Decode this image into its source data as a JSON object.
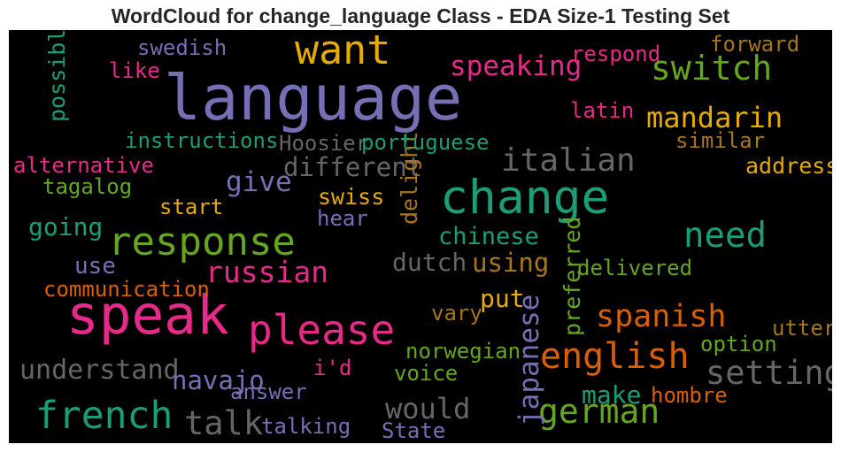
{
  "chart_data": {
    "type": "wordcloud",
    "title": "WordCloud for change_language Class - EDA Size-1 Testing Set",
    "background": "#000000",
    "palette": [
      "#7570b3",
      "#1b9e77",
      "#d95f02",
      "#e7298a",
      "#66a61e",
      "#e6ab02",
      "#a6761d",
      "#666666"
    ],
    "words": [
      {
        "text": "language",
        "weight": 1.0,
        "color": "#7570b3",
        "orientation": "horizontal"
      },
      {
        "text": "speak",
        "weight": 0.85,
        "color": "#e7298a",
        "orientation": "horizontal"
      },
      {
        "text": "change",
        "weight": 0.72,
        "color": "#1b9e77",
        "orientation": "horizontal"
      },
      {
        "text": "please",
        "weight": 0.6,
        "color": "#e7298a",
        "orientation": "horizontal"
      },
      {
        "text": "want",
        "weight": 0.58,
        "color": "#e6ab02",
        "orientation": "horizontal"
      },
      {
        "text": "response",
        "weight": 0.56,
        "color": "#66a61e",
        "orientation": "horizontal"
      },
      {
        "text": "french",
        "weight": 0.53,
        "color": "#1b9e77",
        "orientation": "horizontal"
      },
      {
        "text": "english",
        "weight": 0.49,
        "color": "#d95f02",
        "orientation": "horizontal"
      },
      {
        "text": "need",
        "weight": 0.47,
        "color": "#1b9e77",
        "orientation": "horizontal"
      },
      {
        "text": "switch",
        "weight": 0.45,
        "color": "#66a61e",
        "orientation": "horizontal"
      },
      {
        "text": "german",
        "weight": 0.45,
        "color": "#66a61e",
        "orientation": "horizontal"
      },
      {
        "text": "setting",
        "weight": 0.43,
        "color": "#666666",
        "orientation": "horizontal"
      },
      {
        "text": "talk",
        "weight": 0.42,
        "color": "#666666",
        "orientation": "horizontal"
      },
      {
        "text": "italian",
        "weight": 0.41,
        "color": "#666666",
        "orientation": "horizontal"
      },
      {
        "text": "spanish",
        "weight": 0.39,
        "color": "#d95f02",
        "orientation": "horizontal"
      },
      {
        "text": "russian",
        "weight": 0.35,
        "color": "#e7298a",
        "orientation": "horizontal"
      },
      {
        "text": "mandarin",
        "weight": 0.34,
        "color": "#e6ab02",
        "orientation": "horizontal"
      },
      {
        "text": "would",
        "weight": 0.34,
        "color": "#666666",
        "orientation": "horizontal"
      },
      {
        "text": "speaking",
        "weight": 0.32,
        "color": "#e7298a",
        "orientation": "horizontal"
      },
      {
        "text": "give",
        "weight": 0.32,
        "color": "#7570b3",
        "orientation": "horizontal"
      },
      {
        "text": "japanese",
        "weight": 0.31,
        "color": "#7570b3",
        "orientation": "vertical"
      },
      {
        "text": "understand",
        "weight": 0.29,
        "color": "#666666",
        "orientation": "horizontal"
      },
      {
        "text": "different",
        "weight": 0.28,
        "color": "#666666",
        "orientation": "horizontal"
      },
      {
        "text": "using",
        "weight": 0.28,
        "color": "#a6761d",
        "orientation": "horizontal"
      },
      {
        "text": "navajo",
        "weight": 0.27,
        "color": "#7570b3",
        "orientation": "horizontal"
      },
      {
        "text": "make",
        "weight": 0.26,
        "color": "#1b9e77",
        "orientation": "horizontal"
      },
      {
        "text": "dutch",
        "weight": 0.25,
        "color": "#666666",
        "orientation": "horizontal"
      },
      {
        "text": "going",
        "weight": 0.25,
        "color": "#1b9e77",
        "orientation": "horizontal"
      },
      {
        "text": "put",
        "weight": 0.25,
        "color": "#e6ab02",
        "orientation": "horizontal"
      },
      {
        "text": "chinese",
        "weight": 0.23,
        "color": "#1b9e77",
        "orientation": "horizontal"
      },
      {
        "text": "use",
        "weight": 0.22,
        "color": "#7570b3",
        "orientation": "horizontal"
      },
      {
        "text": "preferred",
        "weight": 0.2,
        "color": "#66a61e",
        "orientation": "vertical"
      },
      {
        "text": "delight",
        "weight": 0.19,
        "color": "#a6761d",
        "orientation": "vertical"
      },
      {
        "text": "possible",
        "weight": 0.19,
        "color": "#1b9e77",
        "orientation": "vertical"
      },
      {
        "text": "swiss",
        "weight": 0.19,
        "color": "#e6ab02",
        "orientation": "horizontal"
      },
      {
        "text": "address",
        "weight": 0.19,
        "color": "#e6ab02",
        "orientation": "horizontal"
      },
      {
        "text": "instructions",
        "weight": 0.18,
        "color": "#1b9e77",
        "orientation": "horizontal"
      },
      {
        "text": "utter",
        "weight": 0.18,
        "color": "#a6761d",
        "orientation": "horizontal"
      },
      {
        "text": "i'd",
        "weight": 0.18,
        "color": "#e7298a",
        "orientation": "horizontal"
      },
      {
        "text": "communication",
        "weight": 0.18,
        "color": "#d95f02",
        "orientation": "horizontal"
      },
      {
        "text": "option",
        "weight": 0.18,
        "color": "#66a61e",
        "orientation": "horizontal"
      },
      {
        "text": "voice",
        "weight": 0.18,
        "color": "#66a61e",
        "orientation": "horizontal"
      },
      {
        "text": "norwegian",
        "weight": 0.18,
        "color": "#66a61e",
        "orientation": "horizontal"
      },
      {
        "text": "delivered",
        "weight": 0.17,
        "color": "#66a61e",
        "orientation": "horizontal"
      },
      {
        "text": "hombre",
        "weight": 0.17,
        "color": "#d95f02",
        "orientation": "horizontal"
      },
      {
        "text": "respond",
        "weight": 0.17,
        "color": "#e7298a",
        "orientation": "horizontal"
      },
      {
        "text": "Hoosier",
        "weight": 0.17,
        "color": "#666666",
        "orientation": "horizontal"
      },
      {
        "text": "portuguese",
        "weight": 0.17,
        "color": "#1b9e77",
        "orientation": "horizontal"
      },
      {
        "text": "forward",
        "weight": 0.17,
        "color": "#a6761d",
        "orientation": "horizontal"
      },
      {
        "text": "similar",
        "weight": 0.17,
        "color": "#a6761d",
        "orientation": "horizontal"
      },
      {
        "text": "start",
        "weight": 0.17,
        "color": "#e6ab02",
        "orientation": "horizontal"
      },
      {
        "text": "hear",
        "weight": 0.17,
        "color": "#7570b3",
        "orientation": "horizontal"
      },
      {
        "text": "answer",
        "weight": 0.17,
        "color": "#7570b3",
        "orientation": "horizontal"
      },
      {
        "text": "talking",
        "weight": 0.17,
        "color": "#7570b3",
        "orientation": "horizontal"
      },
      {
        "text": "alternative",
        "weight": 0.17,
        "color": "#e7298a",
        "orientation": "horizontal"
      },
      {
        "text": "tagalog",
        "weight": 0.17,
        "color": "#66a61e",
        "orientation": "horizontal"
      },
      {
        "text": "vary",
        "weight": 0.17,
        "color": "#a6761d",
        "orientation": "horizontal"
      },
      {
        "text": "swedish",
        "weight": 0.17,
        "color": "#7570b3",
        "orientation": "horizontal"
      },
      {
        "text": "like",
        "weight": 0.17,
        "color": "#e7298a",
        "orientation": "horizontal"
      },
      {
        "text": "latin",
        "weight": 0.17,
        "color": "#e7298a",
        "orientation": "horizontal"
      },
      {
        "text": "State",
        "weight": 0.17,
        "color": "#7570b3",
        "orientation": "horizontal"
      }
    ]
  }
}
